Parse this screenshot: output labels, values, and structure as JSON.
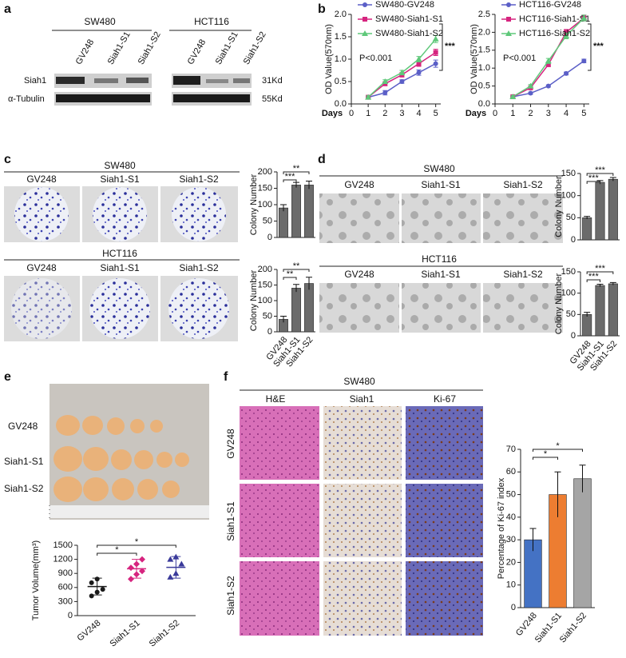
{
  "panel_labels": [
    "a",
    "b",
    "c",
    "d",
    "e",
    "f"
  ],
  "blot": {
    "cell_lines": [
      "SW480",
      "HCT116"
    ],
    "lanes": [
      "GV248",
      "Siah1-S1",
      "Siah1-S2",
      "GV248",
      "Siah1-S1",
      "Siah1-S2"
    ],
    "proteins": [
      "Siah1",
      "α-Tubulin"
    ],
    "sizes": [
      "31Kd",
      "55Kd"
    ]
  },
  "colony": {
    "cell_lines": [
      "SW480",
      "HCT116"
    ],
    "groups": [
      "GV248",
      "Siah1-S1",
      "Siah1-S2",
      "GV248",
      "Siah1-S1",
      "Siah1-S2"
    ]
  },
  "soft_agar": {
    "cell_lines": [
      "SW480",
      "HCT116"
    ],
    "groups": [
      "GV248",
      "Siah1-S1",
      "Siah1-S2",
      "GV248",
      "Siah1-S1",
      "Siah1-S2"
    ]
  },
  "tumor": {
    "groups": [
      "GV248",
      "Siah1-S1",
      "Siah1-S2"
    ]
  },
  "ihc": {
    "cell_line": "SW480",
    "stains": [
      "H&E",
      "Siah1",
      "Ki-67"
    ],
    "groups": [
      "GV248",
      "Siah1-S1",
      "Siah1-S2"
    ]
  },
  "chart_data": [
    {
      "type": "line",
      "xlabel": "Days",
      "ylabel": "OD Value(570nm)",
      "x": [
        1,
        2,
        3,
        4,
        5
      ],
      "xlim": [
        0,
        5.3
      ],
      "xticks": [
        0,
        1,
        2,
        3,
        4,
        5
      ],
      "ylim": [
        0,
        2.0
      ],
      "yticks": [
        {
          "value": 0,
          "label": "0.0"
        },
        0.5,
        {
          "value": 1,
          "label": "1.0"
        },
        1.5,
        {
          "value": 2,
          "label": "2.0"
        }
      ],
      "annotations": [
        "P<0.001",
        "***"
      ],
      "series": [
        {
          "name": "SW480-GV248",
          "color": "#5b5fc7",
          "values": [
            0.15,
            0.25,
            0.5,
            0.7,
            0.9
          ],
          "errors": [
            0.03,
            0.05,
            0.04,
            0.06,
            0.08
          ]
        },
        {
          "name": "SW480-Siah1-S1",
          "color": "#d6247f",
          "values": [
            0.15,
            0.45,
            0.65,
            0.9,
            1.15
          ],
          "errors": [
            0.03,
            0.04,
            0.05,
            0.06,
            0.07
          ]
        },
        {
          "name": "SW480-Siah1-S2",
          "color": "#5fc87a",
          "values": [
            0.15,
            0.5,
            0.7,
            1.0,
            1.45
          ],
          "errors": [
            0.03,
            0.04,
            0.05,
            0.06,
            0.08
          ]
        }
      ]
    },
    {
      "type": "line",
      "xlabel": "Days",
      "ylabel": "OD Value(570nm)",
      "x": [
        1,
        2,
        3,
        4,
        5
      ],
      "xlim": [
        0,
        5.3
      ],
      "xticks": [
        0,
        1,
        2,
        3,
        4,
        5
      ],
      "ylim": [
        0,
        2.5
      ],
      "yticks": [
        {
          "value": 0,
          "label": "0.0"
        },
        0.5,
        {
          "value": 1,
          "label": "1.0"
        },
        1.5,
        {
          "value": 2,
          "label": "2.0"
        },
        2.5
      ],
      "annotations": [
        "P<0.001",
        "***"
      ],
      "series": [
        {
          "name": "HCT116-GV248",
          "color": "#5b5fc7",
          "values": [
            0.2,
            0.3,
            0.5,
            0.85,
            1.2
          ],
          "errors": [
            0.02,
            0.03,
            0.03,
            0.04,
            0.05
          ]
        },
        {
          "name": "HCT116-Siah1-S1",
          "color": "#d6247f",
          "values": [
            0.2,
            0.45,
            1.1,
            2.0,
            2.4
          ],
          "errors": [
            0.03,
            0.04,
            0.06,
            0.08,
            0.08
          ]
        },
        {
          "name": "HCT116-Siah1-S2",
          "color": "#5fc87a",
          "values": [
            0.2,
            0.5,
            1.2,
            1.9,
            2.4
          ],
          "errors": [
            0.03,
            0.04,
            0.07,
            0.08,
            0.08
          ]
        }
      ]
    },
    {
      "type": "bar",
      "ylabel": "Colony  Number",
      "values": [
        90,
        160,
        160
      ],
      "errors": [
        10,
        8,
        12
      ],
      "color": "#6b6b6b",
      "ylim": [
        0,
        200
      ],
      "yticks": [
        0,
        50,
        100,
        150,
        200
      ],
      "significance": [
        "***",
        "**"
      ]
    },
    {
      "type": "bar",
      "ylabel": "Colony  Number",
      "categories": [
        "GV248",
        "Siah1-S1",
        "Siah1-S2"
      ],
      "values": [
        40,
        140,
        155
      ],
      "errors": [
        10,
        12,
        20
      ],
      "color": "#6b6b6b",
      "ylim": [
        0,
        200
      ],
      "yticks": [
        0,
        50,
        100,
        150,
        200
      ],
      "significance": [
        "**",
        "**"
      ]
    },
    {
      "type": "bar",
      "ylabel": "Colony  Number",
      "values": [
        50,
        130,
        137
      ],
      "errors": [
        3,
        4,
        4
      ],
      "color": "#6b6b6b",
      "ylim": [
        0,
        150
      ],
      "yticks": [
        0,
        50,
        100,
        150
      ],
      "significance": [
        "***",
        "***"
      ]
    },
    {
      "type": "bar",
      "ylabel": "Colony  Number",
      "categories": [
        "GV248",
        "Siah1-S1",
        "Siah1-S2"
      ],
      "values": [
        50,
        118,
        122
      ],
      "errors": [
        5,
        3,
        3
      ],
      "color": "#6b6b6b",
      "ylim": [
        0,
        150
      ],
      "yticks": [
        0,
        50,
        100,
        150
      ],
      "significance": [
        "***",
        "***"
      ]
    },
    {
      "type": "dot",
      "ylabel": "Tumor Volume(mm³)",
      "categories": [
        "GV248",
        "Siah1-S1",
        "Siah1-S2"
      ],
      "colors": [
        "#1a1a1a",
        "#d6247f",
        "#3a3a9a"
      ],
      "groups": [
        [
          420,
          500,
          560,
          700,
          780
        ],
        [
          780,
          880,
          950,
          1020,
          1100,
          1200
        ],
        [
          820,
          900,
          1100,
          1200,
          1250
        ]
      ],
      "means": [
        620,
        1000,
        1030
      ],
      "sd": [
        180,
        200,
        230
      ],
      "ylim": [
        0,
        1500
      ],
      "yticks": [
        0,
        300,
        600,
        900,
        1200,
        1500
      ],
      "significance": [
        "*",
        "*"
      ]
    },
    {
      "type": "bar",
      "ylabel": "Percentage of Ki-67 index",
      "categories": [
        "GV248",
        "Siah1-S1",
        "Siah1-S2"
      ],
      "values": [
        30,
        50,
        57
      ],
      "errors": [
        5,
        10,
        6
      ],
      "colors": [
        "#4472c4",
        "#ed7d31",
        "#a5a5a5"
      ],
      "ylim": [
        0,
        70
      ],
      "yticks": [
        0,
        10,
        20,
        30,
        40,
        50,
        60,
        70
      ],
      "significance": [
        "*",
        "*"
      ]
    }
  ]
}
